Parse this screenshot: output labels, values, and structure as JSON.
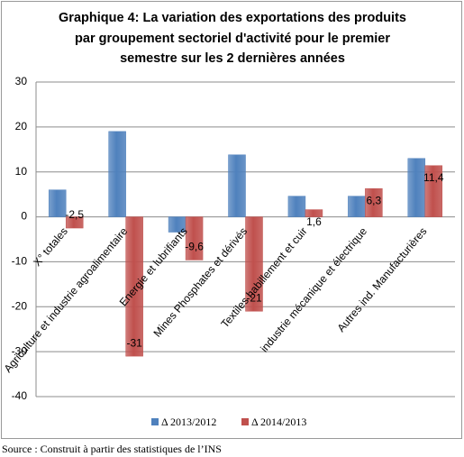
{
  "chart_data": {
    "type": "bar",
    "title_lines": [
      "Graphique 4: La variation des exportations des produits",
      "par groupement sectoriel d'activité pour le premier",
      "semestre sur les 2 dernières années"
    ],
    "categories": [
      "X° totales",
      "Agriculture et industrie agroalimentaire",
      "Energie et lubrifiants",
      "Mines Phosphates et dérivés",
      "Textiles habillement et cuir",
      "industrie mécanique et électrique",
      "Autres ind. Manufacturières"
    ],
    "series": [
      {
        "name": "Δ 2013/2012",
        "color": "#4f81bd",
        "values": [
          6.0,
          19.0,
          -3.4,
          13.8,
          4.6,
          4.6,
          13.0
        ]
      },
      {
        "name": "Δ 2014/2013",
        "color": "#c0504d",
        "values": [
          -2.5,
          -31,
          -9.6,
          -21,
          1.6,
          6.3,
          11.4
        ],
        "value_labels": [
          "-2,5",
          "-31",
          "-9,6",
          "-21",
          "1,6",
          "6,3",
          "11,4"
        ]
      }
    ],
    "ylim": [
      -40,
      30
    ],
    "yticks": [
      -40,
      -30,
      -20,
      -10,
      0,
      10,
      20,
      30
    ],
    "grid": true,
    "legend": "bottom",
    "source": "Source : Construit à partir des statistiques de l’INS"
  }
}
